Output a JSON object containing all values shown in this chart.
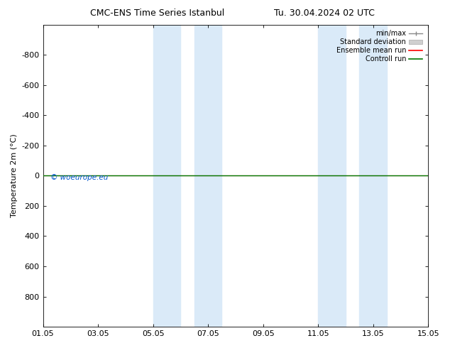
{
  "title": "CMC-ENS Time Series Istanbul",
  "title_right": "Tu. 30.04.2024 02 UTC",
  "ylabel": "Temperature 2m (°C)",
  "ylim": [
    -1000,
    1000
  ],
  "yticks": [
    -800,
    -600,
    -400,
    -200,
    0,
    200,
    400,
    600,
    800
  ],
  "xtick_labels": [
    "01.05",
    "03.05",
    "05.05",
    "07.05",
    "09.05",
    "11.05",
    "13.05",
    "15.05"
  ],
  "xtick_positions": [
    0,
    2,
    4,
    6,
    8,
    10,
    12,
    14
  ],
  "bg_color": "#ffffff",
  "plot_bg_color": "#ffffff",
  "shaded_bands": [
    {
      "x_start": 4.0,
      "x_end": 5.0,
      "color": "#daeaf8"
    },
    {
      "x_start": 5.5,
      "x_end": 6.5,
      "color": "#daeaf8"
    },
    {
      "x_start": 10.0,
      "x_end": 11.0,
      "color": "#daeaf8"
    },
    {
      "x_start": 11.5,
      "x_end": 12.5,
      "color": "#daeaf8"
    }
  ],
  "green_line_y": 0,
  "green_line_color": "#007700",
  "red_line_color": "#ff0000",
  "watermark_text": "© woeurope.eu",
  "watermark_color": "#0055cc",
  "x_num_days": 14,
  "font_size": 8,
  "title_fontsize": 9
}
